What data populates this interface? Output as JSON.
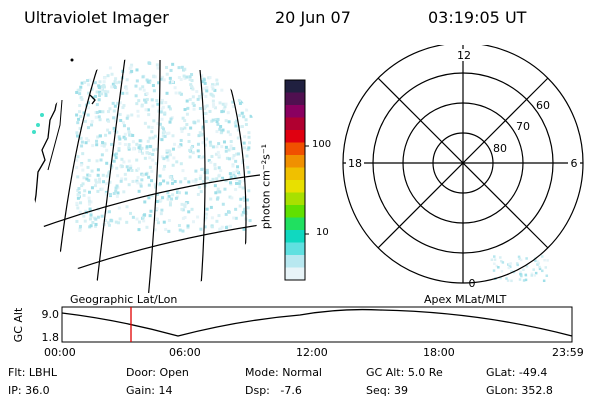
{
  "header": {
    "instrument": "Ultraviolet Imager",
    "date": "20 Jun 07",
    "time": "03:19:05 UT"
  },
  "geo_panel": {
    "label": "Geographic Lat/Lon"
  },
  "colorbar": {
    "unit_label": "photon cm⁻²s⁻¹",
    "ticks": [
      "100",
      "10"
    ],
    "colors": [
      "#202040",
      "#501050",
      "#8a0060",
      "#b00030",
      "#e00010",
      "#f05000",
      "#f09000",
      "#f0c000",
      "#e8e000",
      "#a8e000",
      "#60e000",
      "#20e060",
      "#10d8c0",
      "#60e0e0",
      "#b8e8f0",
      "#e8f4f8"
    ]
  },
  "polar_panel": {
    "label": "Apex MLat/MLT",
    "mlt_labels": {
      "top": "12",
      "left": "18",
      "right": "6",
      "bottom": "0"
    },
    "lat_labels": [
      "60",
      "70",
      "80"
    ]
  },
  "altitude_plot": {
    "ylabel": "GC Alt",
    "yticks": [
      "9.0",
      "1.8"
    ],
    "xticks": [
      "00:00",
      "06:00",
      "12:00",
      "18:00",
      "23:59"
    ],
    "marker_color": "#e00000"
  },
  "footer": {
    "row1": [
      {
        "key": "Flt:",
        "value": "LBHL"
      },
      {
        "key": "Door:",
        "value": "Open"
      },
      {
        "key": "Mode:",
        "value": "Normal"
      },
      {
        "key": "GC Alt:",
        "value": "5.0 Re"
      },
      {
        "key": "GLat:",
        "value": "-49.4"
      }
    ],
    "row2": [
      {
        "key": "IP:",
        "value": "36.0"
      },
      {
        "key": "Gain:",
        "value": "14"
      },
      {
        "key": "Dsp:",
        "value": "-7.6"
      },
      {
        "key": "Seq:",
        "value": "39"
      },
      {
        "key": "GLon:",
        "value": "352.8"
      }
    ]
  }
}
